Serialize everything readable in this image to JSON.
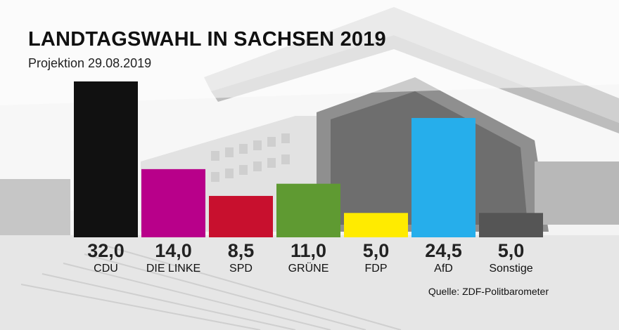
{
  "header": {
    "title": "LANDTAGSWAHL IN SACHSEN 2019",
    "subtitle": "Projektion 29.08.2019"
  },
  "footer": {
    "source": "Quelle: ZDF-Politbarometer"
  },
  "chart_data": {
    "type": "bar",
    "title": "LANDTAGSWAHL IN SACHSEN 2019",
    "subtitle": "Projektion 29.08.2019",
    "categories": [
      "CDU",
      "DIE LINKE",
      "SPD",
      "GRÜNE",
      "FDP",
      "AfD",
      "Sonstige"
    ],
    "values": [
      32.0,
      14.0,
      8.5,
      11.0,
      5.0,
      24.5,
      5.0
    ],
    "value_labels": [
      "32,0",
      "14,0",
      "8,5",
      "11,0",
      "5,0",
      "24,5",
      "5,0"
    ],
    "colors": [
      "#111111",
      "#b8008a",
      "#c8102e",
      "#5f9a32",
      "#ffeb00",
      "#26aeeb",
      "#555555"
    ],
    "xlabel": "",
    "ylabel": "",
    "ylim": [
      0,
      32
    ],
    "grid": false,
    "legend": "none"
  }
}
